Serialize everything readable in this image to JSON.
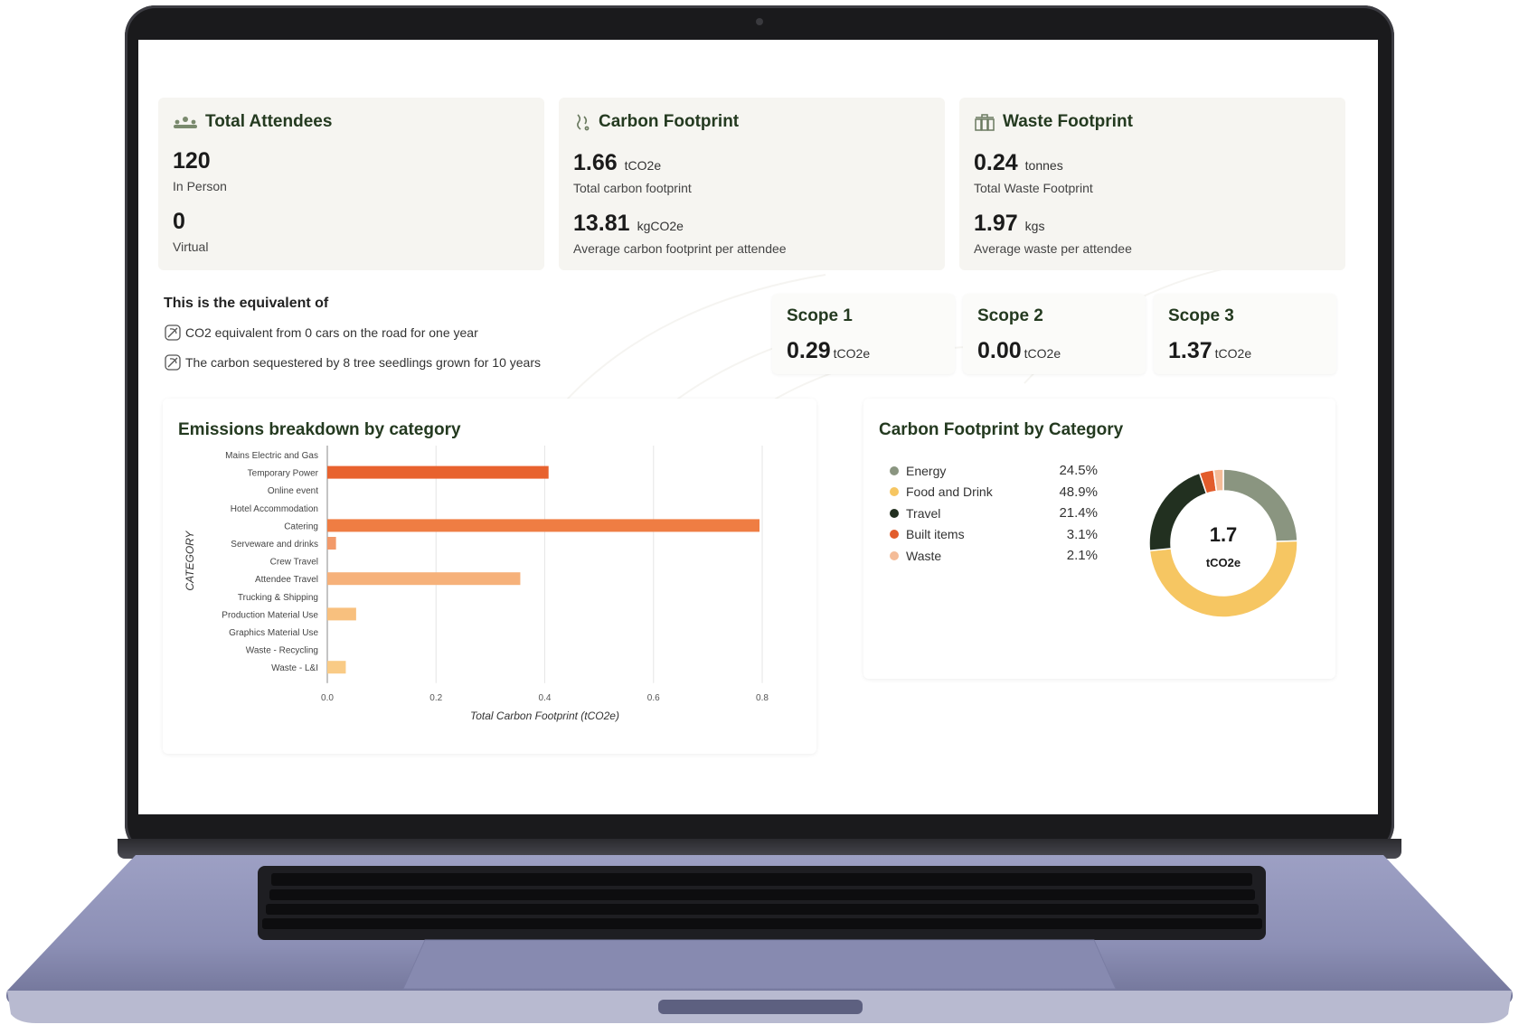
{
  "attendees": {
    "title": "Total Attendees",
    "in_person_value": "120",
    "in_person_label": "In Person",
    "virtual_value": "0",
    "virtual_label": "Virtual"
  },
  "carbon": {
    "title": "Carbon Footprint",
    "total_value": "1.66",
    "total_unit": "tCO2e",
    "total_label": "Total carbon footprint",
    "avg_value": "13.81",
    "avg_unit": "kgCO2e",
    "avg_label": "Average carbon footprint per attendee"
  },
  "waste": {
    "title": "Waste Footprint",
    "total_value": "0.24",
    "total_unit": "tonnes",
    "total_label": "Total Waste Footprint",
    "avg_value": "1.97",
    "avg_unit": "kgs",
    "avg_label": "Average waste per attendee"
  },
  "equivalent": {
    "heading": "This is the equivalent of",
    "items": [
      "CO2 equivalent from 0 cars on the road for one year",
      "The carbon sequestered by 8 tree seedlings grown for 10 years"
    ]
  },
  "scopes": [
    {
      "title": "Scope 1",
      "value": "0.29",
      "unit": "tCO2e"
    },
    {
      "title": "Scope 2",
      "value": "0.00",
      "unit": "tCO2e"
    },
    {
      "title": "Scope 3",
      "value": "1.37",
      "unit": "tCO2e"
    }
  ],
  "emissions_panel_title": "Emissions breakdown by category",
  "donut_panel_title": "Carbon Footprint by Category",
  "chart_data": [
    {
      "type": "bar",
      "orientation": "horizontal",
      "title": "Emissions breakdown by category",
      "xlabel": "Total Carbon Footprint (tCO2e)",
      "ylabel": "CATEGORY",
      "xlim": [
        0,
        0.8
      ],
      "xticks": [
        "0.0",
        "0.2",
        "0.4",
        "0.6",
        "0.8"
      ],
      "grid": true,
      "categories": [
        "Mains Electric and Gas",
        "Temporary Power",
        "Online event",
        "Hotel Accommodation",
        "Catering",
        "Serveware and drinks",
        "Crew Travel",
        "Attendee Travel",
        "Trucking & Shipping",
        "Production Material Use",
        "Graphics Material Use",
        "Waste - Recycling",
        "Waste - L&I"
      ],
      "values": [
        0,
        0.407,
        0,
        0,
        0.795,
        0.016,
        0,
        0.355,
        0,
        0.053,
        0,
        0,
        0.034
      ],
      "colors": [
        "#e8622e",
        "#e8622e",
        "#e8622e",
        "#e8622e",
        "#ef7d43",
        "#f29a6a",
        "#f4a56b",
        "#f6b17a",
        "#f6b17a",
        "#f8c07e",
        "#f8c07e",
        "#f8c07e",
        "#f9cb86"
      ]
    },
    {
      "type": "pie",
      "style": "donut",
      "title": "Carbon Footprint by Category",
      "center_value": "1.7",
      "center_unit": "tCO2e",
      "categories": [
        "Energy",
        "Food and Drink",
        "Travel",
        "Built items",
        "Waste"
      ],
      "values": [
        24.5,
        48.9,
        21.4,
        3.1,
        2.1
      ],
      "labels": [
        "24.5%",
        "48.9%",
        "21.4%",
        "3.1%",
        "2.1%"
      ],
      "colors": [
        "#8a9580",
        "#f6c662",
        "#223020",
        "#e25c2b",
        "#f4bc98"
      ]
    }
  ]
}
